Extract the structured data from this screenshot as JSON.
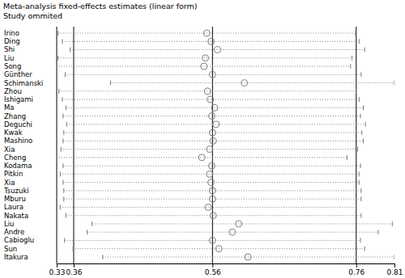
{
  "chart_data": {
    "type": "forest",
    "title": "Meta-analysis fixed-effects estimates (linear form)",
    "subtitle": "Study ommited",
    "categories": [
      "Irino",
      "Ding",
      "Shi",
      "Liu",
      "Song",
      "Günther",
      "Schimanski",
      "Zhou",
      "Ishigami",
      "Ma",
      "Zhang",
      "Deguchi",
      "Kwak",
      "Mashino",
      "Xia",
      "Cheng",
      "Kodama",
      "Pitkin",
      "Xia",
      "Tsuzuki",
      "Mburu",
      "Laura",
      "Nakata",
      "Liu",
      "Andre",
      "Cabioglu",
      "Sun",
      "Itakura"
    ],
    "values": [
      0.547,
      0.553,
      0.562,
      0.545,
      0.543,
      0.555,
      0.6,
      0.548,
      0.552,
      0.558,
      0.554,
      0.56,
      0.555,
      0.556,
      0.551,
      0.54,
      0.554,
      0.551,
      0.553,
      0.555,
      0.555,
      0.549,
      0.556,
      0.592,
      0.583,
      0.555,
      0.564,
      0.605
    ],
    "lower": [
      0.337,
      0.343,
      0.354,
      0.337,
      0.335,
      0.347,
      0.411,
      0.338,
      0.343,
      0.348,
      0.344,
      0.349,
      0.345,
      0.344,
      0.341,
      0.335,
      0.344,
      0.34,
      0.344,
      0.345,
      0.345,
      0.34,
      0.348,
      0.385,
      0.378,
      0.346,
      0.358,
      0.4
    ],
    "upper": [
      0.757,
      0.762,
      0.77,
      0.752,
      0.75,
      0.765,
      0.812,
      0.758,
      0.762,
      0.768,
      0.764,
      0.771,
      0.766,
      0.768,
      0.76,
      0.745,
      0.764,
      0.762,
      0.762,
      0.765,
      0.765,
      0.758,
      0.765,
      0.809,
      0.789,
      0.764,
      0.77,
      0.812
    ],
    "overall": {
      "lower": 0.359,
      "estimate": 0.555,
      "upper": 0.758
    },
    "xlim": [
      0.335,
      0.812
    ],
    "xticks": [
      {
        "value": 0.335,
        "label": "0.33"
      },
      {
        "value": 0.359,
        "label": "0.36"
      },
      {
        "value": 0.555,
        "label": "0.56"
      },
      {
        "value": 0.758,
        "label": "0.76"
      },
      {
        "value": 0.812,
        "label": "0.81"
      }
    ],
    "color": "#7f7f7f",
    "marker": "hollow-circle",
    "line_style": "dotted"
  }
}
